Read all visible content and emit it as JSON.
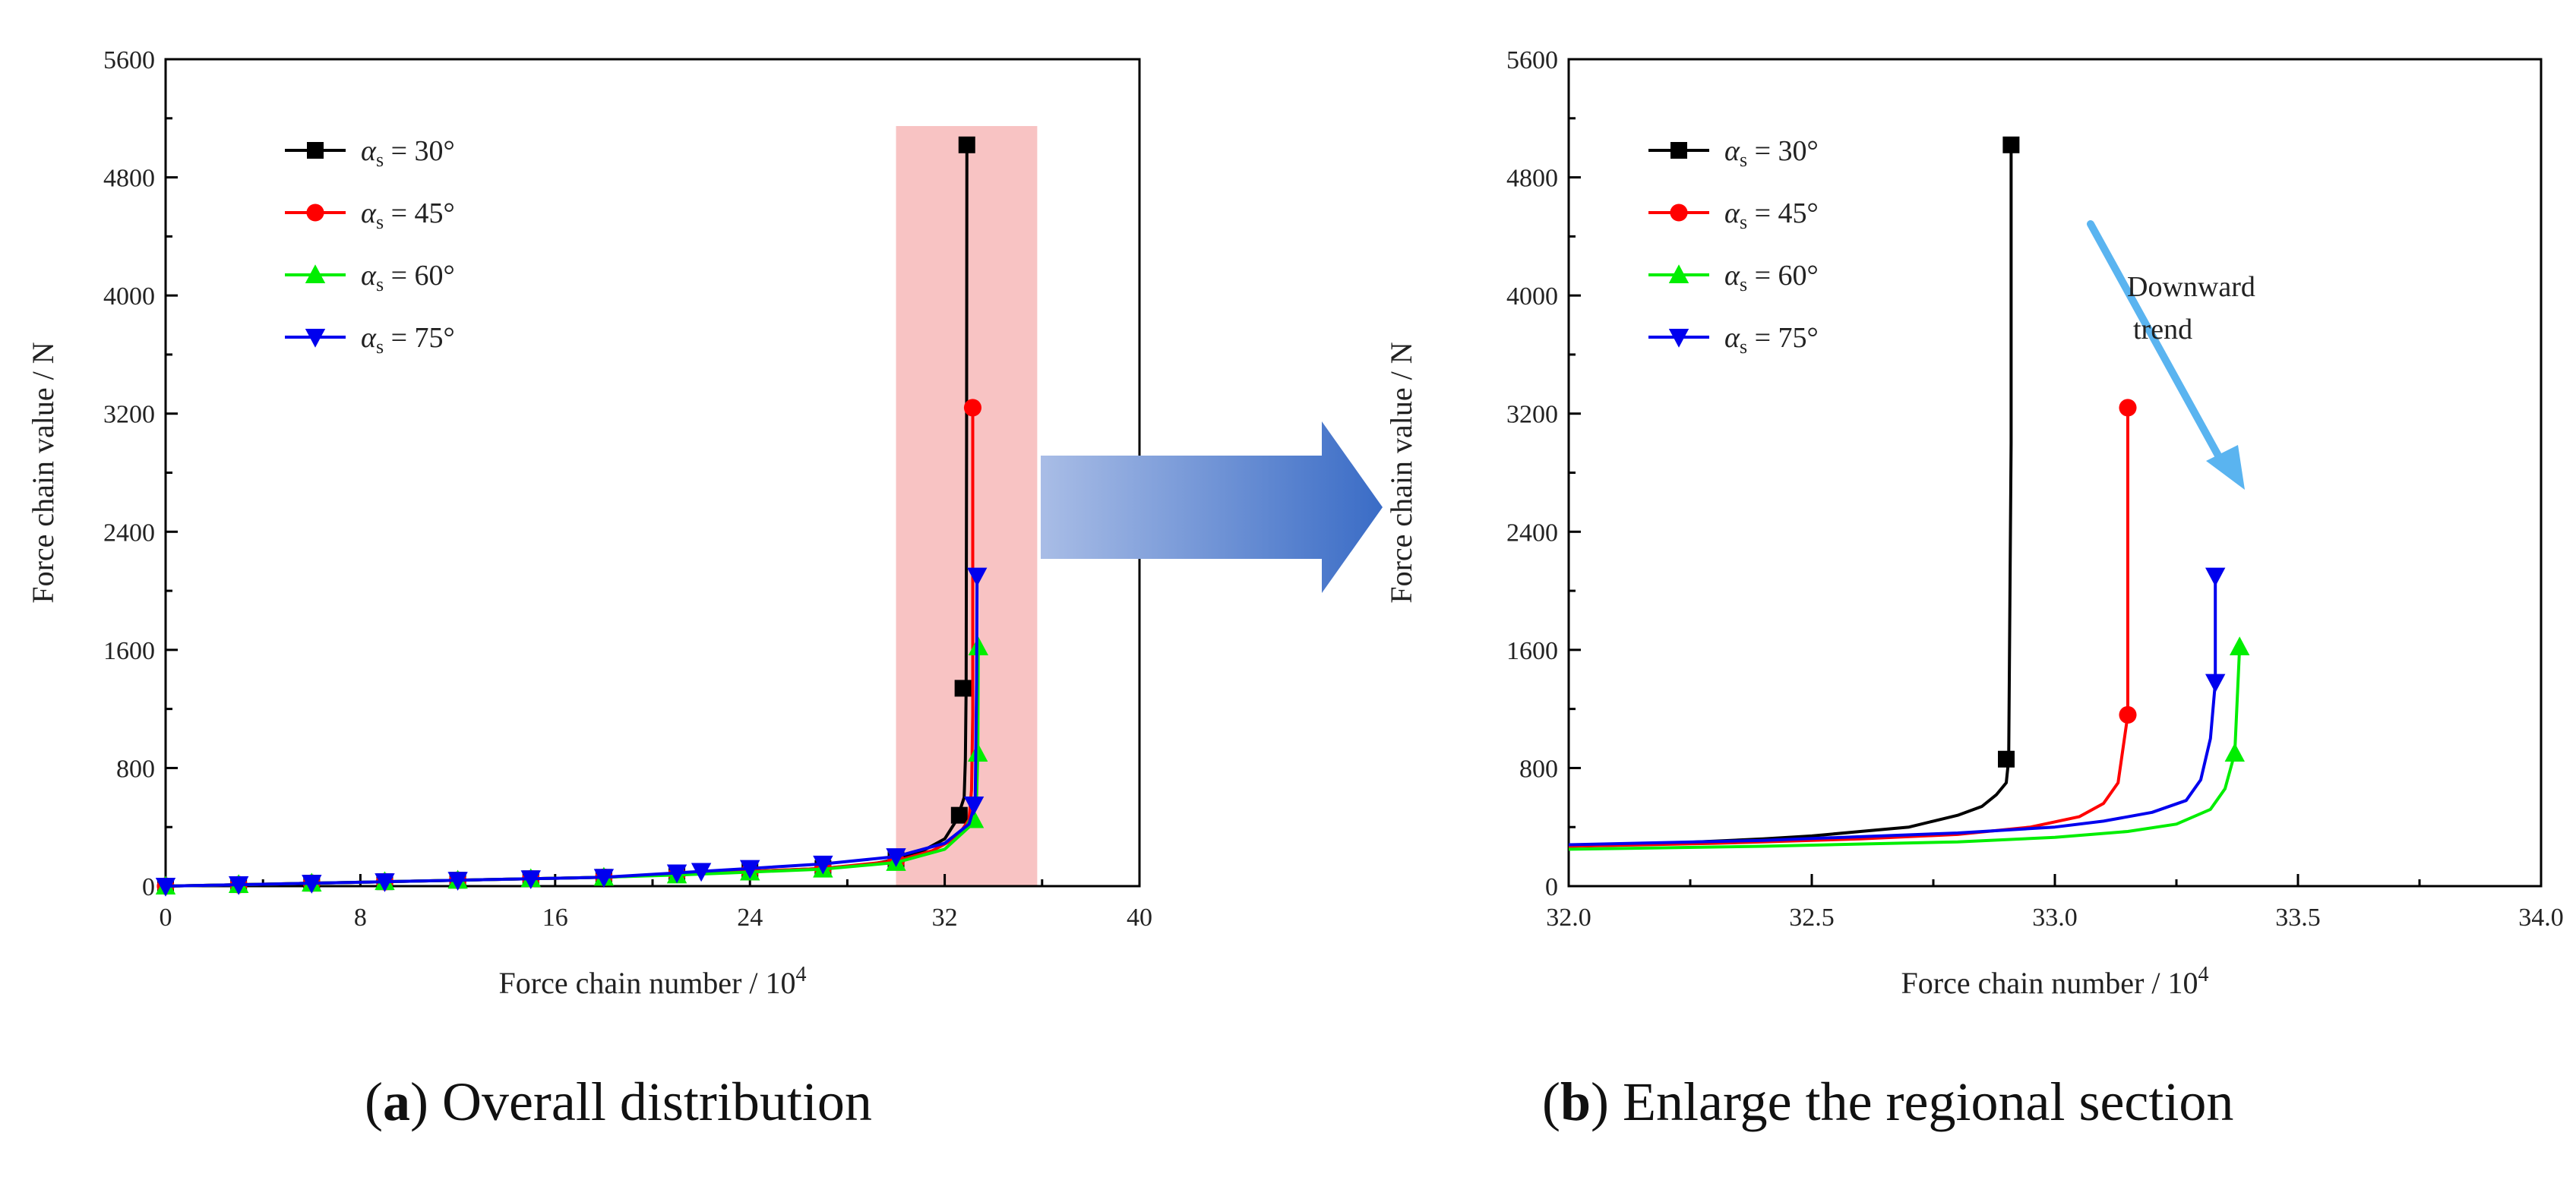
{
  "chart_data": [
    {
      "id": "a",
      "type": "line",
      "xlabel": "Force chain number / 10",
      "xlabel_exp": "4",
      "ylabel": "Force chain value / N",
      "xlim": [
        0,
        40
      ],
      "ylim": [
        0,
        5600
      ],
      "xticks": [
        "0",
        "8",
        "16",
        "24",
        "32",
        "40"
      ],
      "yticks": [
        "0",
        "800",
        "1600",
        "2400",
        "3200",
        "4000",
        "4800",
        "5600"
      ],
      "highlight_region": [
        30,
        35.8
      ],
      "legend_position": "top-left",
      "series": [
        {
          "name": "α_s = 30°",
          "angle": "30°",
          "color": "#000000",
          "marker": "square",
          "x": [
            0,
            3,
            6,
            9,
            12,
            15,
            18,
            21,
            24,
            27,
            29,
            30,
            31,
            32,
            32.5,
            32.8,
            32.85,
            32.88,
            32.9,
            32.91
          ],
          "y": [
            0,
            10,
            20,
            30,
            40,
            50,
            60,
            80,
            100,
            120,
            150,
            180,
            230,
            320,
            450,
            600,
            860,
            1340,
            3000,
            5020
          ],
          "markers_x": [
            0,
            3,
            6,
            9,
            12,
            15,
            18,
            21,
            24,
            27,
            30,
            32.6,
            32.75,
            32.91
          ],
          "markers_y": [
            0,
            10,
            20,
            30,
            40,
            50,
            60,
            80,
            100,
            120,
            180,
            480,
            1340,
            5020
          ]
        },
        {
          "name": "α_s = 45°",
          "angle": "45°",
          "color": "#ff0000",
          "marker": "circle",
          "x": [
            0,
            3,
            6,
            9,
            12,
            15,
            18,
            21,
            24,
            27,
            30,
            31.5,
            32.5,
            33,
            33.1,
            33.15,
            33.15
          ],
          "y": [
            0,
            10,
            20,
            30,
            40,
            50,
            60,
            80,
            100,
            120,
            170,
            240,
            330,
            450,
            650,
            1160,
            3240
          ],
          "markers_x": [
            0,
            3,
            6,
            9,
            12,
            15,
            18,
            21,
            24,
            27,
            30,
            33.15
          ],
          "markers_y": [
            0,
            10,
            20,
            30,
            40,
            50,
            60,
            80,
            100,
            120,
            170,
            3240
          ]
        },
        {
          "name": "α_s = 60°",
          "angle": "60°",
          "color": "#00ee00",
          "marker": "triangle",
          "x": [
            0,
            3,
            6,
            9,
            12,
            15,
            18,
            21,
            24,
            27,
            30,
            32,
            33,
            33.3,
            33.36,
            33.38
          ],
          "y": [
            0,
            10,
            20,
            30,
            40,
            50,
            60,
            75,
            95,
            115,
            160,
            250,
            400,
            550,
            900,
            1620
          ],
          "markers_x": [
            0,
            3,
            6,
            9,
            12,
            15,
            18,
            21,
            24,
            27,
            30,
            33.2,
            33.36,
            33.38
          ],
          "markers_y": [
            0,
            10,
            20,
            30,
            40,
            50,
            60,
            75,
            95,
            115,
            160,
            450,
            900,
            1620
          ]
        },
        {
          "name": "α_s = 75°",
          "angle": "75°",
          "color": "#0000ee",
          "marker": "triangle-down",
          "x": [
            0,
            3,
            6,
            9,
            12,
            15,
            18,
            21,
            24,
            27,
            30,
            32,
            33,
            33.25,
            33.31,
            33.33
          ],
          "y": [
            0,
            10,
            20,
            30,
            40,
            50,
            60,
            90,
            120,
            150,
            200,
            290,
            420,
            560,
            1380,
            2100
          ],
          "markers_x": [
            0,
            3,
            6,
            9,
            12,
            15,
            18,
            21,
            22,
            24,
            27,
            30,
            33.2,
            33.33
          ],
          "markers_y": [
            0,
            10,
            20,
            30,
            40,
            50,
            60,
            90,
            100,
            120,
            150,
            200,
            550,
            2100
          ]
        }
      ]
    },
    {
      "id": "b",
      "type": "line",
      "xlabel": "Force chain number / 10",
      "xlabel_exp": "4",
      "ylabel": "Force chain value / N",
      "xlim": [
        32.0,
        34.0
      ],
      "ylim": [
        0,
        5600
      ],
      "xticks": [
        "32.0",
        "32.5",
        "33.0",
        "33.5",
        "34.0"
      ],
      "yticks": [
        "0",
        "800",
        "1600",
        "2400",
        "3200",
        "4000",
        "4800",
        "5600"
      ],
      "legend_position": "top-left",
      "annotation": {
        "line1": "Downward",
        "line2": "trend"
      },
      "series": [
        {
          "name": "α_s = 30°",
          "angle": "30°",
          "color": "#000000",
          "marker": "square",
          "x": [
            32.0,
            32.2,
            32.4,
            32.5,
            32.6,
            32.7,
            32.75,
            32.8,
            32.85,
            32.88,
            32.9,
            32.905,
            32.91,
            32.91
          ],
          "y": [
            270,
            290,
            320,
            340,
            370,
            400,
            440,
            480,
            540,
            620,
            700,
            860,
            3000,
            5020
          ],
          "markers_x": [
            32.9,
            32.91
          ],
          "markers_y": [
            860,
            5020
          ]
        },
        {
          "name": "α_s = 45°",
          "angle": "45°",
          "color": "#ff0000",
          "marker": "circle",
          "x": [
            32.0,
            32.3,
            32.6,
            32.8,
            32.95,
            33.05,
            33.1,
            33.13,
            33.15,
            33.15
          ],
          "y": [
            270,
            290,
            320,
            350,
            400,
            470,
            560,
            700,
            1160,
            3240
          ],
          "markers_x": [
            33.15,
            33.15
          ],
          "markers_y": [
            1160,
            3240
          ]
        },
        {
          "name": "α_s = 60°",
          "angle": "60°",
          "color": "#00ee00",
          "marker": "triangle",
          "x": [
            32.0,
            32.4,
            32.8,
            33.0,
            33.15,
            33.25,
            33.32,
            33.35,
            33.37,
            33.38
          ],
          "y": [
            250,
            270,
            300,
            330,
            370,
            420,
            520,
            660,
            900,
            1620
          ],
          "markers_x": [
            33.37,
            33.38
          ],
          "markers_y": [
            900,
            1620
          ]
        },
        {
          "name": "α_s = 75°",
          "angle": "75°",
          "color": "#0000ee",
          "marker": "triangle-down",
          "x": [
            32.0,
            32.4,
            32.8,
            33.0,
            33.1,
            33.2,
            33.27,
            33.3,
            33.32,
            33.33,
            33.33
          ],
          "y": [
            280,
            310,
            360,
            400,
            440,
            500,
            580,
            720,
            1000,
            1380,
            2100
          ],
          "markers_x": [
            33.33,
            33.33
          ],
          "markers_y": [
            1380,
            2100
          ]
        }
      ]
    }
  ],
  "captions": {
    "a_letter": "a",
    "a_text": " Overall distribution",
    "b_letter": "b",
    "b_text": " Enlarge the regional section"
  }
}
